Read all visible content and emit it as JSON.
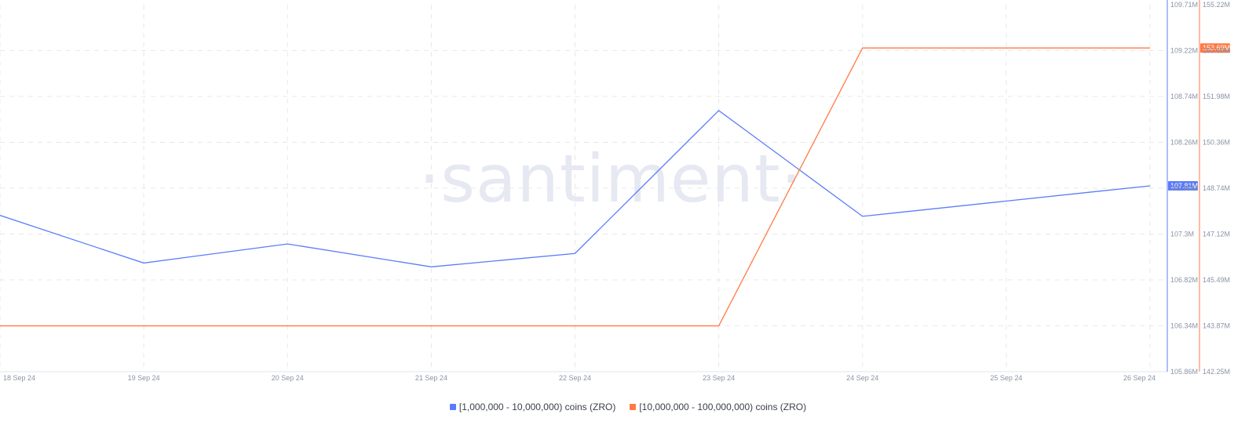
{
  "colors": {
    "series1": "#5b7cfa",
    "series2": "#ff7a45",
    "grid": "#e8e8e8",
    "axis_text": "#8a93a6"
  },
  "watermark": "·santiment·",
  "chart_data": {
    "type": "line",
    "x": [
      "18 Sep 24",
      "19 Sep 24",
      "20 Sep 24",
      "21 Sep 24",
      "22 Sep 24",
      "23 Sep 24",
      "24 Sep 24",
      "25 Sep 24",
      "26 Sep 24"
    ],
    "grid": true,
    "legend_position": "bottom-center",
    "y_left": {
      "ticks": [
        "109.71M",
        "109.22M",
        "108.74M",
        "108.26M",
        "107.81M",
        "107.3M",
        "106.82M",
        "106.34M",
        "105.86M"
      ],
      "range": [
        105.86,
        109.71
      ],
      "unit": "M"
    },
    "y_right": {
      "ticks": [
        "155.22M",
        "153.69M",
        "151.98M",
        "150.36M",
        "148.74M",
        "147.12M",
        "145.49M",
        "143.87M",
        "142.25M"
      ],
      "range": [
        142.25,
        155.22
      ],
      "unit": "M"
    },
    "series": [
      {
        "name": "[1,000,000 - 10,000,000) coins (ZRO)",
        "axis": "left",
        "color": "#5b7cfa",
        "values": [
          107.5,
          107.0,
          107.2,
          106.96,
          107.1,
          108.6,
          107.49,
          107.65,
          107.81
        ],
        "last_label": "107.81M"
      },
      {
        "name": "[10,000,000 - 100,000,000) coins (ZRO)",
        "axis": "right",
        "color": "#ff7a45",
        "values": [
          143.87,
          143.87,
          143.87,
          143.87,
          143.87,
          143.87,
          153.69,
          153.69,
          153.69
        ],
        "last_label": "153.69M"
      }
    ]
  }
}
